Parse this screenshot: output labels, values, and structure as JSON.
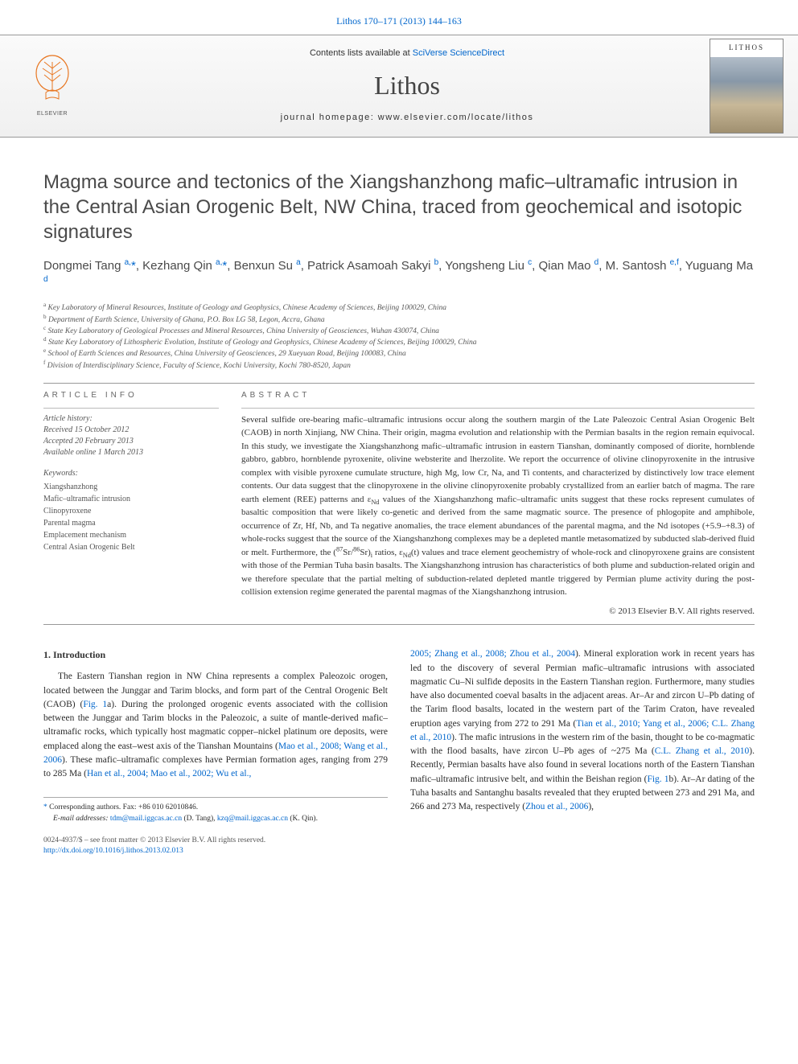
{
  "header_citation": "Lithos 170–171 (2013) 144–163",
  "contents_prefix": "Contents lists available at ",
  "contents_link": "SciVerse ScienceDirect",
  "journal_title": "Lithos",
  "journal_homepage": "journal homepage: www.elsevier.com/locate/lithos",
  "cover_title": "LITHOS",
  "elsevier_text": "ELSEVIER",
  "article_title": "Magma source and tectonics of the Xiangshanzhong mafic–ultramafic intrusion in the Central Asian Orogenic Belt, NW China, traced from geochemical and isotopic signatures",
  "authors_html": "Dongmei Tang <sup>a,</sup><span class='star'>*</span>, Kezhang Qin <sup>a,</sup><span class='star'>*</span>, Benxun Su <sup>a</sup>, Patrick Asamoah Sakyi <sup>b</sup>, Yongsheng Liu <sup>c</sup>, Qian Mao <sup>d</sup>, M. Santosh <sup>e,f</sup>, Yuguang Ma <sup>d</sup>",
  "affiliations": [
    {
      "sup": "a",
      "text": "Key Laboratory of Mineral Resources, Institute of Geology and Geophysics, Chinese Academy of Sciences, Beijing 100029, China"
    },
    {
      "sup": "b",
      "text": "Department of Earth Science, University of Ghana, P.O. Box LG 58, Legon, Accra, Ghana"
    },
    {
      "sup": "c",
      "text": "State Key Laboratory of Geological Processes and Mineral Resources, China University of Geosciences, Wuhan 430074, China"
    },
    {
      "sup": "d",
      "text": "State Key Laboratory of Lithospheric Evolution, Institute of Geology and Geophysics, Chinese Academy of Sciences, Beijing 100029, China"
    },
    {
      "sup": "e",
      "text": "School of Earth Sciences and Resources, China University of Geosciences, 29 Xueyuan Road, Beijing 100083, China"
    },
    {
      "sup": "f",
      "text": "Division of Interdisciplinary Science, Faculty of Science, Kochi University, Kochi 780-8520, Japan"
    }
  ],
  "article_info_label": "article info",
  "abstract_label": "abstract",
  "history": {
    "label": "Article history:",
    "received": "Received 15 October 2012",
    "accepted": "Accepted 20 February 2013",
    "online": "Available online 1 March 2013"
  },
  "keywords_label": "Keywords:",
  "keywords": [
    "Xiangshanzhong",
    "Mafic–ultramafic intrusion",
    "Clinopyroxene",
    "Parental magma",
    "Emplacement mechanism",
    "Central Asian Orogenic Belt"
  ],
  "abstract_html": "Several sulfide ore-bearing mafic–ultramafic intrusions occur along the southern margin of the Late Paleozoic Central Asian Orogenic Belt (CAOB) in north Xinjiang, NW China. Their origin, magma evolution and relationship with the Permian basalts in the region remain equivocal. In this study, we investigate the Xiangshanzhong mafic–ultramafic intrusion in eastern Tianshan, dominantly composed of diorite, hornblende gabbro, gabbro, hornblende pyroxenite, olivine websterite and lherzolite. We report the occurrence of olivine clinopyroxenite in the intrusive complex with visible pyroxene cumulate structure, high Mg, low Cr, Na, and Ti contents, and characterized by distinctively low trace element contents. Our data suggest that the clinopyroxene in the olivine clinopyroxenite probably crystallized from an earlier batch of magma. The rare earth element (REE) patterns and ε<sub>Nd</sub> values of the Xiangshanzhong mafic–ultramafic units suggest that these rocks represent cumulates of basaltic composition that were likely co-genetic and derived from the same magmatic source. The presence of phlogopite and amphibole, occurrence of Zr, Hf, Nb, and Ta negative anomalies, the trace element abundances of the parental magma, and the Nd isotopes (+5.9–+8.3) of whole-rocks suggest that the source of the Xiangshanzhong complexes may be a depleted mantle metasomatized by subducted slab-derived fluid or melt. Furthermore, the (<sup>87</sup>Sr/<sup>86</sup>Sr)<sub>i</sub> ratios, ε<sub>Nd</sub>(t) values and trace element geochemistry of whole-rock and clinopyroxene grains are consistent with those of the Permian Tuha basin basalts. The Xiangshanzhong intrusion has characteristics of both plume and subduction-related origin and we therefore speculate that the partial melting of subduction-related depleted mantle triggered by Permian plume activity during the post-collision extension regime generated the parental magmas of the Xiangshanzhong intrusion.",
  "copyright": "© 2013 Elsevier B.V. All rights reserved.",
  "intro_heading": "1. Introduction",
  "intro_col1_html": "The Eastern Tianshan region in NW China represents a complex Paleozoic orogen, located between the Junggar and Tarim blocks, and form part of the Central Orogenic Belt (CAOB) (<a class='ref' href='#'>Fig. 1</a>a). During the prolonged orogenic events associated with the collision between the Junggar and Tarim blocks in the Paleozoic, a suite of mantle-derived mafic–ultramafic rocks, which typically host magmatic copper–nickel platinum ore deposits, were emplaced along the east–west axis of the Tianshan Mountains (<a class='ref' href='#'>Mao et al., 2008; Wang et al., 2006</a>). These mafic–ultramafic complexes have Permian formation ages, ranging from 279 to 285 Ma (<a class='ref' href='#'>Han et al., 2004; Mao et al., 2002; Wu et al.,</a>",
  "intro_col2_html": "<a class='ref' href='#'>2005; Zhang et al., 2008; Zhou et al., 2004</a>). Mineral exploration work in recent years has led to the discovery of several Permian mafic–ultramafic intrusions with associated magmatic Cu–Ni sulfide deposits in the Eastern Tianshan region. Furthermore, many studies have also documented coeval basalts in the adjacent areas. Ar–Ar and zircon U–Pb dating of the Tarim flood basalts, located in the western part of the Tarim Craton, have revealed eruption ages varying from 272 to 291 Ma (<a class='ref' href='#'>Tian et al., 2010; Yang et al., 2006; C.L. Zhang et al., 2010</a>). The mafic intrusions in the western rim of the basin, thought to be co-magmatic with the flood basalts, have zircon U–Pb ages of ~275 Ma (<a class='ref' href='#'>C.L. Zhang et al., 2010</a>). Recently, Permian basalts have also found in several locations north of the Eastern Tianshan mafic–ultramafic intrusive belt, and within the Beishan region (<a class='ref' href='#'>Fig. 1</a>b). Ar–Ar dating of the Tuha basalts and Santanghu basalts revealed that they erupted between 273 and 291 Ma, and 266 and 273 Ma, respectively (<a class='ref' href='#'>Zhou et al., 2006</a>),",
  "footnote_corresp": "Corresponding authors. Fax: +86 010 62010846.",
  "footnote_email_label": "E-mail addresses: ",
  "footnote_emails_html": "<a href='#'>tdm@mail.iggcas.ac.cn</a> (D. Tang), <a href='#'>kzq@mail.iggcas.ac.cn</a> (K. Qin).",
  "issn_line": "0024-4937/$ – see front matter © 2013 Elsevier B.V. All rights reserved.",
  "doi_link": "http://dx.doi.org/10.1016/j.lithos.2013.02.013",
  "colors": {
    "link": "#0066cc",
    "text": "#333333",
    "muted": "#555555"
  }
}
